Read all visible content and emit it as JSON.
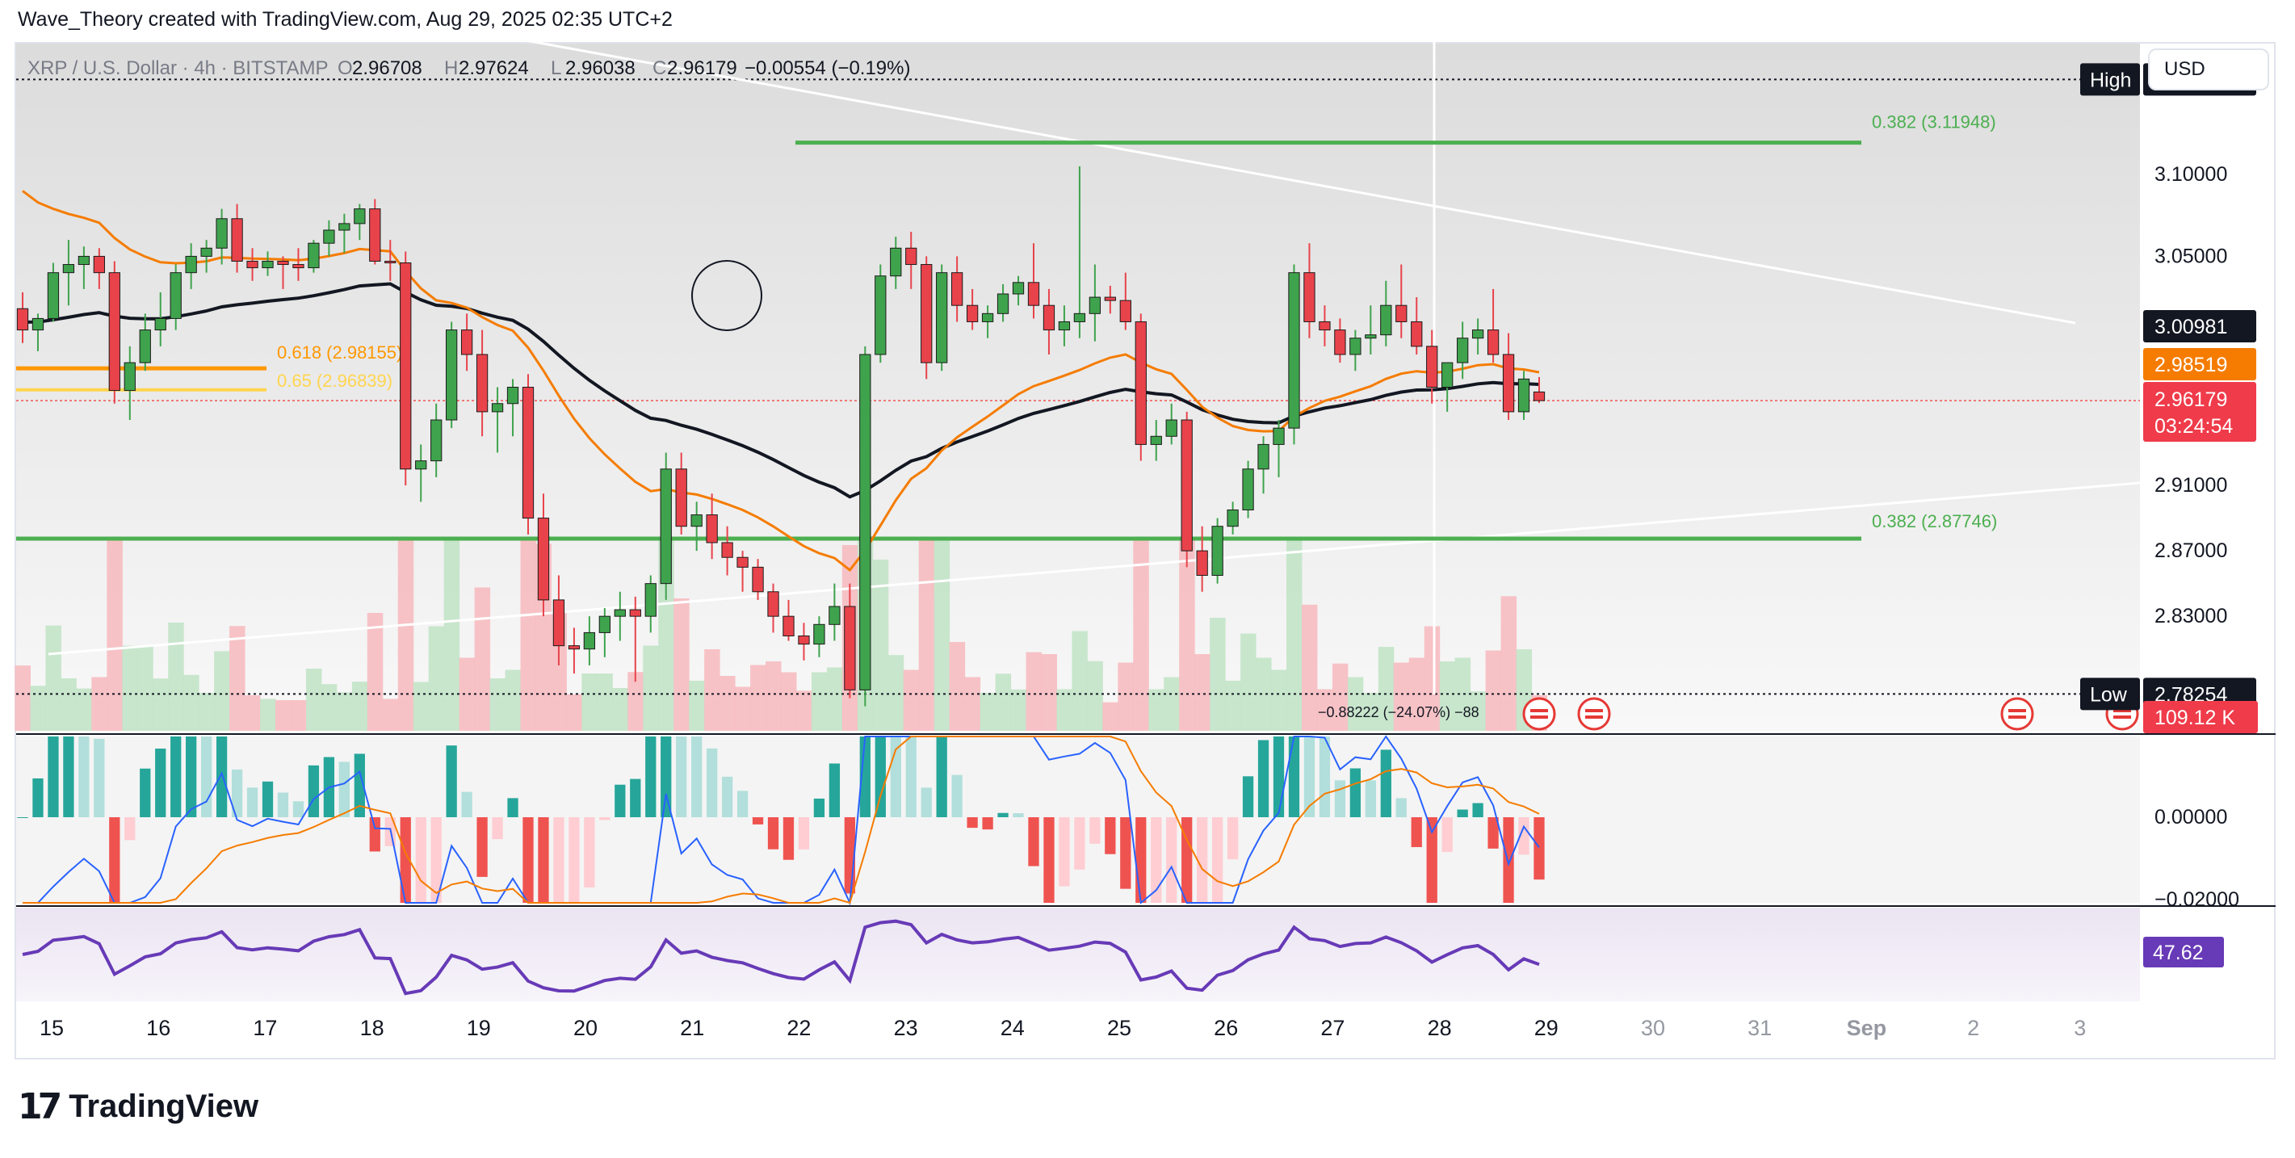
{
  "header": {
    "attribution": "Wave_Theory created with TradingView.com, Aug 29, 2025 02:35 UTC+2"
  },
  "legend": {
    "symbol": "XRP / U.S. Dollar · 4h · BITSTAMP",
    "o_label": "O",
    "o_value": "2.96708",
    "h_label": "H",
    "h_value": "2.97624",
    "l_label": "L",
    "l_value": "2.96038",
    "c_label": "C",
    "c_value": "2.96179",
    "change": "−0.00554 (−0.19%)"
  },
  "currency_button": "USD",
  "brand": {
    "logo_mark": "17",
    "name": "TradingView"
  },
  "colors": {
    "up": "#26a69a",
    "down": "#ef5350",
    "up_candle": "#3fa34d",
    "down_candle": "#e8434b",
    "ema_orange": "#f57c00",
    "ma_black": "#131722",
    "fib_green": "#4caf50",
    "fib_orange": "#ff9800",
    "fib_yellow": "#ffd54f",
    "rsi": "#673ab7"
  },
  "chart_data": {
    "type": "candlestick",
    "title": "XRP / U.S. Dollar · 4h · BITSTAMP",
    "price_axis": {
      "ticks": [
        "3.10000",
        "3.05000",
        "2.91000",
        "2.87000",
        "2.83000"
      ],
      "ylim": [
        2.76,
        3.18
      ]
    },
    "time_axis": {
      "labels": [
        "15",
        "16",
        "17",
        "18",
        "19",
        "20",
        "21",
        "22",
        "23",
        "24",
        "25",
        "26",
        "27",
        "28",
        "29",
        "30",
        "31",
        "Sep",
        "2",
        "3"
      ]
    },
    "markers": {
      "high": {
        "label": "High",
        "value": "3.15808"
      },
      "low": {
        "label": "Low",
        "value": "2.78254"
      },
      "ma_value": "3.00981",
      "ema_value": "2.98519",
      "last_price": "2.96179",
      "countdown": "03:24:54",
      "volume": "109.12 K"
    },
    "fib_levels": [
      {
        "label": "0.382 (3.11948)",
        "value": 3.11948
      },
      {
        "label": "0.382 (2.87746)",
        "value": 2.87746
      },
      {
        "label": "0.618 (2.98155)",
        "value": 2.98155
      },
      {
        "label": "0.65 (2.96839)",
        "value": 2.96839
      }
    ],
    "measure_label": "−0.88222 (−24.07%) −88",
    "candles": [
      [
        3.018,
        3.028,
        2.997,
        3.005
      ],
      [
        3.005,
        3.015,
        2.992,
        3.012
      ],
      [
        3.012,
        3.046,
        3.01,
        3.04
      ],
      [
        3.04,
        3.06,
        3.02,
        3.045
      ],
      [
        3.045,
        3.056,
        3.03,
        3.05
      ],
      [
        3.05,
        3.055,
        3.03,
        3.04
      ],
      [
        3.04,
        3.047,
        2.96,
        2.968
      ],
      [
        2.968,
        2.995,
        2.95,
        2.985
      ],
      [
        2.985,
        3.015,
        2.98,
        3.005
      ],
      [
        3.005,
        3.028,
        2.995,
        3.012
      ],
      [
        3.012,
        3.045,
        3.005,
        3.04
      ],
      [
        3.04,
        3.058,
        3.03,
        3.05
      ],
      [
        3.05,
        3.06,
        3.04,
        3.055
      ],
      [
        3.055,
        3.079,
        3.045,
        3.073
      ],
      [
        3.073,
        3.082,
        3.04,
        3.047
      ],
      [
        3.047,
        3.055,
        3.035,
        3.043
      ],
      [
        3.043,
        3.053,
        3.038,
        3.047
      ],
      [
        3.047,
        3.05,
        3.03,
        3.045
      ],
      [
        3.045,
        3.055,
        3.035,
        3.043
      ],
      [
        3.043,
        3.06,
        3.04,
        3.058
      ],
      [
        3.058,
        3.072,
        3.05,
        3.066
      ],
      [
        3.066,
        3.076,
        3.052,
        3.07
      ],
      [
        3.07,
        3.082,
        3.06,
        3.079
      ],
      [
        3.079,
        3.085,
        3.045,
        3.047
      ],
      [
        3.047,
        3.06,
        3.035,
        3.046
      ],
      [
        3.046,
        3.053,
        2.91,
        2.92
      ],
      [
        2.92,
        2.935,
        2.9,
        2.925
      ],
      [
        2.925,
        2.96,
        2.915,
        2.95
      ],
      [
        2.95,
        3.01,
        2.945,
        3.005
      ],
      [
        3.005,
        3.015,
        2.98,
        2.99
      ],
      [
        2.99,
        3.005,
        2.94,
        2.955
      ],
      [
        2.955,
        2.97,
        2.93,
        2.96
      ],
      [
        2.96,
        2.975,
        2.94,
        2.97
      ],
      [
        2.97,
        2.978,
        2.88,
        2.89
      ],
      [
        2.89,
        2.905,
        2.83,
        2.84
      ],
      [
        2.84,
        2.855,
        2.8,
        2.812
      ],
      [
        2.812,
        2.823,
        2.795,
        2.81
      ],
      [
        2.81,
        2.83,
        2.8,
        2.82
      ],
      [
        2.82,
        2.835,
        2.805,
        2.83
      ],
      [
        2.83,
        2.845,
        2.815,
        2.834
      ],
      [
        2.834,
        2.842,
        2.79,
        2.83
      ],
      [
        2.83,
        2.855,
        2.82,
        2.85
      ],
      [
        2.85,
        2.93,
        2.84,
        2.92
      ],
      [
        2.92,
        2.93,
        2.88,
        2.885
      ],
      [
        2.885,
        2.9,
        2.87,
        2.892
      ],
      [
        2.892,
        2.905,
        2.865,
        2.875
      ],
      [
        2.875,
        2.885,
        2.855,
        2.866
      ],
      [
        2.866,
        2.87,
        2.845,
        2.86
      ],
      [
        2.86,
        2.865,
        2.84,
        2.845
      ],
      [
        2.845,
        2.85,
        2.82,
        2.83
      ],
      [
        2.83,
        2.84,
        2.815,
        2.818
      ],
      [
        2.818,
        2.826,
        2.803,
        2.813
      ],
      [
        2.813,
        2.83,
        2.805,
        2.825
      ],
      [
        2.825,
        2.85,
        2.815,
        2.836
      ],
      [
        2.836,
        2.85,
        2.78,
        2.785
      ],
      [
        2.785,
        2.995,
        2.775,
        2.99
      ],
      [
        2.99,
        3.045,
        2.985,
        3.038
      ],
      [
        3.038,
        3.062,
        3.03,
        3.055
      ],
      [
        3.055,
        3.065,
        3.03,
        3.045
      ],
      [
        3.045,
        3.05,
        2.975,
        2.985
      ],
      [
        2.985,
        3.045,
        2.98,
        3.04
      ],
      [
        3.04,
        3.05,
        3.01,
        3.02
      ],
      [
        3.02,
        3.03,
        3.005,
        3.01
      ],
      [
        3.01,
        3.02,
        3.0,
        3.015
      ],
      [
        3.015,
        3.033,
        3.01,
        3.027
      ],
      [
        3.027,
        3.038,
        3.02,
        3.034
      ],
      [
        3.034,
        3.058,
        3.012,
        3.02
      ],
      [
        3.02,
        3.03,
        2.99,
        3.005
      ],
      [
        3.005,
        3.02,
        2.995,
        3.01
      ],
      [
        3.01,
        3.105,
        3.0,
        3.015
      ],
      [
        3.015,
        3.045,
        2.998,
        3.025
      ],
      [
        3.025,
        3.032,
        3.015,
        3.023
      ],
      [
        3.023,
        3.04,
        3.005,
        3.01
      ],
      [
        3.01,
        3.015,
        2.925,
        2.935
      ],
      [
        2.935,
        2.95,
        2.925,
        2.94
      ],
      [
        2.94,
        2.96,
        2.935,
        2.95
      ],
      [
        2.95,
        2.955,
        2.86,
        2.87
      ],
      [
        2.87,
        2.885,
        2.845,
        2.855
      ],
      [
        2.855,
        2.89,
        2.85,
        2.885
      ],
      [
        2.885,
        2.9,
        2.88,
        2.895
      ],
      [
        2.895,
        2.925,
        2.89,
        2.92
      ],
      [
        2.92,
        2.94,
        2.905,
        2.935
      ],
      [
        2.935,
        2.95,
        2.915,
        2.945
      ],
      [
        2.945,
        3.045,
        2.935,
        3.04
      ],
      [
        3.04,
        3.058,
        3.0,
        3.01
      ],
      [
        3.01,
        3.02,
        2.995,
        3.005
      ],
      [
        3.005,
        3.012,
        2.985,
        2.99
      ],
      [
        2.99,
        3.005,
        2.98,
        3.0
      ],
      [
        3.0,
        3.02,
        2.99,
        3.002
      ],
      [
        3.002,
        3.035,
        2.995,
        3.02
      ],
      [
        3.02,
        3.045,
        3.0,
        3.01
      ],
      [
        3.01,
        3.025,
        2.99,
        2.995
      ],
      [
        2.995,
        3.005,
        2.96,
        2.97
      ],
      [
        2.97,
        2.985,
        2.955,
        2.985
      ],
      [
        2.985,
        3.01,
        2.975,
        3.0
      ],
      [
        3.0,
        3.012,
        2.99,
        3.005
      ],
      [
        3.005,
        3.03,
        2.985,
        2.99
      ],
      [
        2.99,
        3.003,
        2.95,
        2.955
      ],
      [
        2.955,
        2.98,
        2.95,
        2.975
      ],
      [
        2.9671,
        2.9762,
        2.9604,
        2.9618
      ]
    ],
    "series": [
      {
        "name": "MA",
        "type": "line"
      },
      {
        "name": "EMA",
        "type": "line"
      },
      {
        "name": "MACD",
        "type": "histogram",
        "axis_ticks": [
          "0.00000",
          "−0.02000"
        ]
      },
      {
        "name": "RSI",
        "value": "47.62"
      }
    ],
    "grid": false
  }
}
